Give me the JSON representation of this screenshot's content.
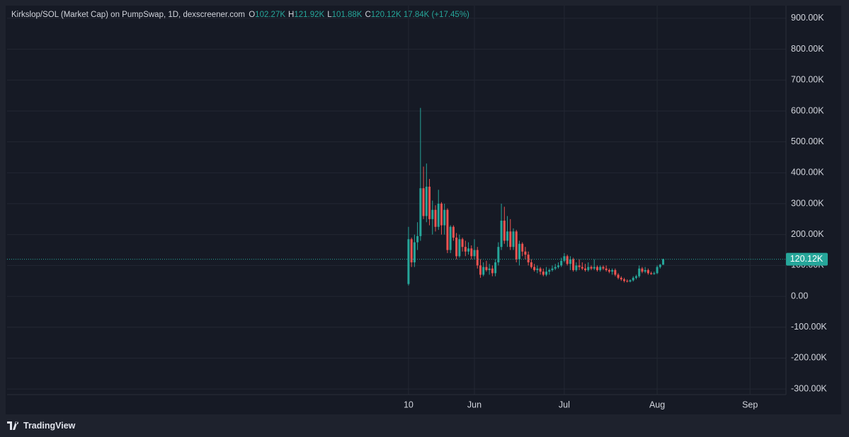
{
  "chart_data": {
    "type": "candlestick",
    "title": "Kirkslop/SOL (Market Cap) on PumpSwap, 1D, dexscreener.com",
    "ohlc_header": [
      {
        "label": "O",
        "text": "102.27K"
      },
      {
        "label": "H",
        "text": "121.92K"
      },
      {
        "label": "L",
        "text": "101.88K"
      },
      {
        "label": "C",
        "text": "120.12K"
      }
    ],
    "change": "17.84K",
    "change_pct": "(+17.45%)",
    "up_color": "#26a69a",
    "down_color": "#ef5350",
    "open": [
      40000,
      185000,
      110000,
      175000,
      195000,
      350000,
      260000,
      355000,
      250000,
      280000,
      225000,
      300000,
      230000,
      280000,
      150000,
      225000,
      190000,
      130000,
      185000,
      160000,
      145000,
      155000,
      130000,
      150000,
      100000,
      70000,
      95000,
      85000,
      90000,
      75000,
      110000,
      160000,
      245000,
      180000,
      210000,
      160000,
      210000,
      120000,
      170000,
      145000,
      135000,
      110000,
      95000,
      85000,
      90000,
      80000,
      70000,
      80000,
      85000,
      90000,
      95000,
      100000,
      115000,
      130000,
      105000,
      120000,
      85000,
      100000,
      95000,
      90000,
      85000,
      95000,
      90000,
      95000,
      85000,
      95000,
      90000,
      85000,
      80000,
      85000,
      70000,
      60000,
      55000,
      50000,
      48000,
      52000,
      60000,
      65000,
      90000,
      80000,
      85000,
      75000,
      72000,
      75000,
      95000,
      102270
    ],
    "high": [
      225000,
      190000,
      200000,
      240000,
      610000,
      420000,
      430000,
      380000,
      310000,
      295000,
      345000,
      305000,
      300000,
      285000,
      230000,
      230000,
      205000,
      200000,
      190000,
      180000,
      175000,
      165000,
      185000,
      160000,
      120000,
      110000,
      115000,
      105000,
      100000,
      120000,
      175000,
      300000,
      290000,
      260000,
      250000,
      220000,
      215000,
      180000,
      175000,
      160000,
      145000,
      120000,
      105000,
      100000,
      95000,
      90000,
      95000,
      90000,
      100000,
      105000,
      110000,
      125000,
      140000,
      135000,
      130000,
      125000,
      110000,
      120000,
      110000,
      105000,
      110000,
      100000,
      120000,
      100000,
      100000,
      100000,
      100000,
      90000,
      90000,
      90000,
      75000,
      65000,
      60000,
      55000,
      55000,
      65000,
      70000,
      100000,
      95000,
      95000,
      90000,
      80000,
      80000,
      100000,
      105000,
      121920
    ],
    "low": [
      35000,
      95000,
      95000,
      150000,
      180000,
      250000,
      240000,
      230000,
      200000,
      210000,
      215000,
      200000,
      200000,
      140000,
      140000,
      180000,
      120000,
      125000,
      145000,
      130000,
      135000,
      120000,
      120000,
      90000,
      60000,
      65000,
      80000,
      70000,
      65000,
      65000,
      100000,
      150000,
      170000,
      160000,
      150000,
      150000,
      110000,
      100000,
      130000,
      120000,
      100000,
      90000,
      80000,
      75000,
      70000,
      65000,
      65000,
      70000,
      80000,
      85000,
      90000,
      95000,
      110000,
      100000,
      85000,
      80000,
      80000,
      85000,
      85000,
      80000,
      80000,
      85000,
      85000,
      80000,
      80000,
      85000,
      80000,
      75000,
      70000,
      65000,
      55000,
      50000,
      45000,
      45000,
      45000,
      48000,
      55000,
      60000,
      75000,
      75000,
      70000,
      70000,
      70000,
      72000,
      90000,
      101880
    ],
    "close": [
      185000,
      110000,
      175000,
      195000,
      350000,
      260000,
      355000,
      250000,
      280000,
      225000,
      300000,
      230000,
      280000,
      150000,
      225000,
      190000,
      130000,
      185000,
      160000,
      145000,
      155000,
      130000,
      150000,
      100000,
      70000,
      95000,
      85000,
      90000,
      75000,
      110000,
      160000,
      245000,
      180000,
      210000,
      160000,
      210000,
      120000,
      170000,
      145000,
      135000,
      110000,
      95000,
      85000,
      90000,
      80000,
      70000,
      80000,
      85000,
      90000,
      95000,
      100000,
      115000,
      130000,
      105000,
      120000,
      85000,
      100000,
      95000,
      90000,
      85000,
      95000,
      90000,
      95000,
      85000,
      95000,
      90000,
      85000,
      80000,
      85000,
      70000,
      60000,
      55000,
      50000,
      48000,
      52000,
      60000,
      65000,
      90000,
      80000,
      85000,
      75000,
      72000,
      75000,
      95000,
      102270,
      120120
    ],
    "xlim": [
      -134,
      126
    ],
    "xticks": [
      {
        "value": 0,
        "label": "10"
      },
      {
        "value": 22,
        "label": "Jun"
      },
      {
        "value": 52,
        "label": "Jul"
      },
      {
        "value": 83,
        "label": "Aug"
      },
      {
        "value": 114,
        "label": "Sep"
      }
    ],
    "ylim": [
      -318000,
      941000
    ],
    "yticks": [
      {
        "value": 900000,
        "label": "900.00K"
      },
      {
        "value": 800000,
        "label": "800.00K"
      },
      {
        "value": 700000,
        "label": "700.00K"
      },
      {
        "value": 600000,
        "label": "600.00K"
      },
      {
        "value": 500000,
        "label": "500.00K"
      },
      {
        "value": 400000,
        "label": "400.00K"
      },
      {
        "value": 300000,
        "label": "300.00K"
      },
      {
        "value": 200000,
        "label": "200.00K"
      },
      {
        "value": 100000,
        "label": "100.00K"
      },
      {
        "value": 0,
        "label": "0.00"
      },
      {
        "value": -100000,
        "label": "-100.00K"
      },
      {
        "value": -200000,
        "label": "-200.00K"
      },
      {
        "value": -300000,
        "label": "-300.00K"
      }
    ],
    "grid": true,
    "last_value": 120120,
    "last_label": "120.12K"
  },
  "footer": {
    "brand": "TradingView"
  }
}
